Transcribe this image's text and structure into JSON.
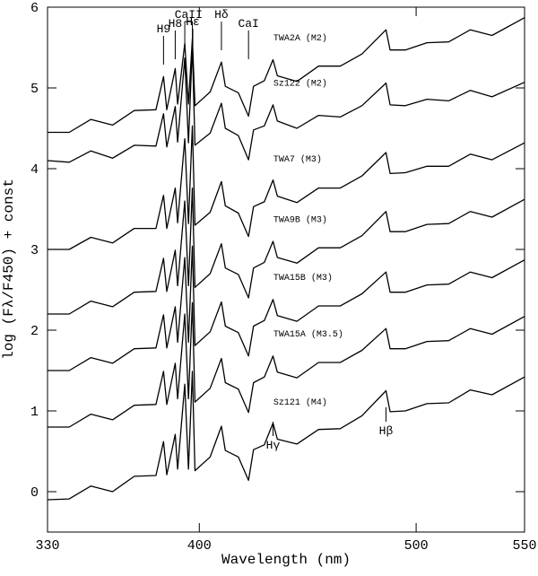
{
  "chart_data": {
    "type": "line",
    "xlabel": "Wavelength (nm)",
    "ylabel": "log (Fλ/F450) + const",
    "xlim": [
      330,
      550
    ],
    "ylim": [
      -0.5,
      6
    ],
    "xticks": [
      330,
      400,
      500,
      550
    ],
    "yticks": [
      0,
      1,
      2,
      3,
      4,
      5,
      6
    ],
    "x": [
      330,
      340,
      350,
      360,
      370,
      380,
      383.5,
      385,
      388.9,
      390,
      393.3,
      395,
      396.8,
      398,
      405,
      410.2,
      412,
      418,
      422.7,
      425,
      430,
      434,
      436,
      445,
      455,
      465,
      475,
      486.1,
      488,
      495,
      505,
      515,
      525,
      535,
      550
    ],
    "series": [
      {
        "name": "TWA2A (M2)",
        "color": "#000000",
        "values": [
          4.45,
          4.45,
          4.61,
          4.54,
          4.72,
          4.73,
          5.14,
          4.73,
          5.24,
          4.8,
          5.55,
          4.8,
          5.61,
          4.78,
          4.95,
          5.32,
          5.02,
          4.94,
          4.65,
          5.02,
          5.09,
          5.35,
          5.15,
          5.08,
          5.27,
          5.27,
          5.42,
          5.72,
          5.47,
          5.47,
          5.56,
          5.57,
          5.72,
          5.65,
          5.87
        ]
      },
      {
        "name": "Sz122 (M2)",
        "color": "#000000",
        "values": [
          4.1,
          4.08,
          4.22,
          4.13,
          4.29,
          4.28,
          4.68,
          4.27,
          4.77,
          4.33,
          5.37,
          4.32,
          5.52,
          4.29,
          4.44,
          4.81,
          4.5,
          4.41,
          4.11,
          4.48,
          4.53,
          4.79,
          4.59,
          4.5,
          4.66,
          4.64,
          4.78,
          5.06,
          4.79,
          4.78,
          4.86,
          4.84,
          4.97,
          4.89,
          5.07
        ]
      },
      {
        "name": "TWA7 (M3)",
        "color": "#000000",
        "values": [
          3.0,
          3.0,
          3.15,
          3.08,
          3.26,
          3.26,
          3.67,
          3.26,
          3.76,
          3.33,
          4.37,
          3.32,
          4.53,
          3.3,
          3.46,
          3.84,
          3.54,
          3.45,
          3.16,
          3.53,
          3.59,
          3.86,
          3.66,
          3.58,
          3.76,
          3.76,
          3.91,
          4.2,
          3.94,
          3.95,
          4.03,
          4.03,
          4.18,
          4.11,
          4.32
        ]
      },
      {
        "name": "TWA9B (M3)",
        "color": "#000000",
        "values": [
          2.2,
          2.2,
          2.36,
          2.29,
          2.47,
          2.48,
          2.89,
          2.48,
          2.99,
          2.55,
          3.6,
          2.55,
          3.76,
          2.53,
          2.7,
          3.07,
          2.77,
          2.69,
          2.4,
          2.77,
          2.84,
          3.1,
          2.9,
          2.83,
          3.02,
          3.02,
          3.17,
          3.47,
          3.22,
          3.22,
          3.31,
          3.32,
          3.47,
          3.4,
          3.62
        ]
      },
      {
        "name": "TWA15B (M3)",
        "color": "#000000",
        "values": [
          1.5,
          1.5,
          1.66,
          1.59,
          1.77,
          1.78,
          2.19,
          1.78,
          2.29,
          1.85,
          2.9,
          1.85,
          3.04,
          1.81,
          1.98,
          2.35,
          2.05,
          1.97,
          1.68,
          2.05,
          2.12,
          2.38,
          2.18,
          2.11,
          2.3,
          2.3,
          2.45,
          2.72,
          2.47,
          2.47,
          2.56,
          2.57,
          2.72,
          2.65,
          2.87
        ]
      },
      {
        "name": "TWA15A (M3.5)",
        "color": "#000000",
        "values": [
          0.8,
          0.8,
          0.96,
          0.89,
          1.07,
          1.08,
          1.49,
          1.08,
          1.59,
          1.15,
          2.2,
          1.15,
          2.34,
          1.11,
          1.28,
          1.65,
          1.35,
          1.27,
          0.98,
          1.35,
          1.42,
          1.68,
          1.48,
          1.41,
          1.6,
          1.6,
          1.75,
          2.02,
          1.77,
          1.77,
          1.86,
          1.87,
          2.02,
          1.95,
          2.17
        ]
      },
      {
        "name": "Sz121 (M4)",
        "color": "#000000",
        "values": [
          -0.1,
          -0.09,
          0.07,
          0.0,
          0.19,
          0.2,
          0.62,
          0.21,
          0.71,
          0.28,
          1.33,
          0.28,
          1.49,
          0.26,
          0.43,
          0.81,
          0.51,
          0.43,
          0.14,
          0.52,
          0.58,
          0.85,
          0.65,
          0.59,
          0.77,
          0.78,
          0.94,
          1.25,
          0.99,
          1.0,
          1.09,
          1.1,
          1.26,
          1.2,
          1.42
        ]
      }
    ],
    "top_labels": [
      {
        "text": "H9",
        "x": [
          383.5
        ]
      },
      {
        "text": "H8",
        "x": [
          388.9
        ]
      },
      {
        "text": "CaII",
        "x": [
          393.3,
          396.8
        ]
      },
      {
        "text": "Hε",
        "x": [
          397.0
        ]
      },
      {
        "text": "Hδ",
        "x": [
          410.2
        ]
      },
      {
        "text": "CaI",
        "x": [
          422.7
        ]
      }
    ],
    "bottom_labels": [
      {
        "text": "Hγ",
        "x": [
          434.0
        ]
      },
      {
        "text": "Hβ",
        "x": [
          486.1
        ]
      }
    ]
  }
}
